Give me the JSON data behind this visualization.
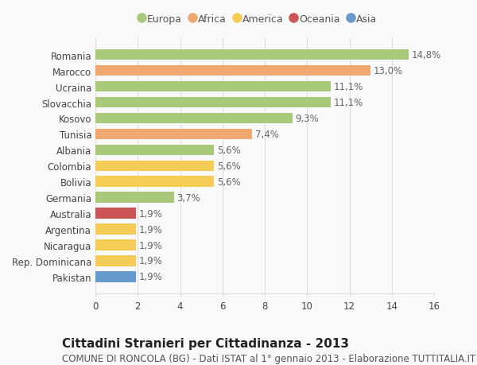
{
  "countries": [
    "Romania",
    "Marocco",
    "Ucraina",
    "Slovacchia",
    "Kosovo",
    "Tunisia",
    "Albania",
    "Colombia",
    "Bolivia",
    "Germania",
    "Australia",
    "Argentina",
    "Nicaragua",
    "Rep. Dominicana",
    "Pakistan"
  ],
  "values": [
    14.8,
    13.0,
    11.1,
    11.1,
    9.3,
    7.4,
    5.6,
    5.6,
    5.6,
    3.7,
    1.9,
    1.9,
    1.9,
    1.9,
    1.9
  ],
  "labels": [
    "14,8%",
    "13,0%",
    "11,1%",
    "11,1%",
    "9,3%",
    "7,4%",
    "5,6%",
    "5,6%",
    "5,6%",
    "3,7%",
    "1,9%",
    "1,9%",
    "1,9%",
    "1,9%",
    "1,9%"
  ],
  "continents": [
    "Europa",
    "Africa",
    "Europa",
    "Europa",
    "Europa",
    "Africa",
    "Europa",
    "America",
    "America",
    "Europa",
    "Oceania",
    "America",
    "America",
    "America",
    "Asia"
  ],
  "continent_colors": {
    "Europa": "#a8c87a",
    "Africa": "#f0a870",
    "America": "#f5cc55",
    "Oceania": "#cc5555",
    "Asia": "#6699cc"
  },
  "legend_order": [
    "Europa",
    "Africa",
    "America",
    "Oceania",
    "Asia"
  ],
  "title": "Cittadini Stranieri per Cittadinanza - 2013",
  "subtitle": "COMUNE DI RONCOLA (BG) - Dati ISTAT al 1° gennaio 2013 - Elaborazione TUTTITALIA.IT",
  "xlim": [
    0,
    16
  ],
  "xticks": [
    0,
    2,
    4,
    6,
    8,
    10,
    12,
    14,
    16
  ],
  "background_color": "#f9f9f9",
  "grid_color": "#dddddd",
  "bar_height": 0.68,
  "title_fontsize": 11,
  "subtitle_fontsize": 8.5,
  "label_fontsize": 8.5,
  "tick_fontsize": 8.5,
  "legend_fontsize": 9
}
